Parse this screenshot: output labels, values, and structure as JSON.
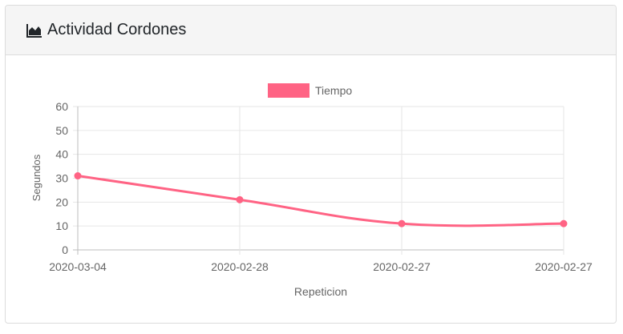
{
  "card": {
    "title": "Actividad Cordones",
    "icon": "area-chart-icon"
  },
  "chart_data": {
    "type": "line",
    "categories": [
      "2020-03-04",
      "2020-02-28",
      "2020-02-27",
      "2020-02-27"
    ],
    "series": [
      {
        "name": "Tiempo",
        "values": [
          31,
          21,
          11,
          11
        ],
        "color": "#ff6384"
      }
    ],
    "xlabel": "Repeticion",
    "ylabel": "Segundos",
    "ylim": [
      0,
      60
    ],
    "yticks": [
      "0",
      "10",
      "20",
      "30",
      "40",
      "50",
      "60"
    ],
    "grid": true,
    "legend": "top-center"
  }
}
